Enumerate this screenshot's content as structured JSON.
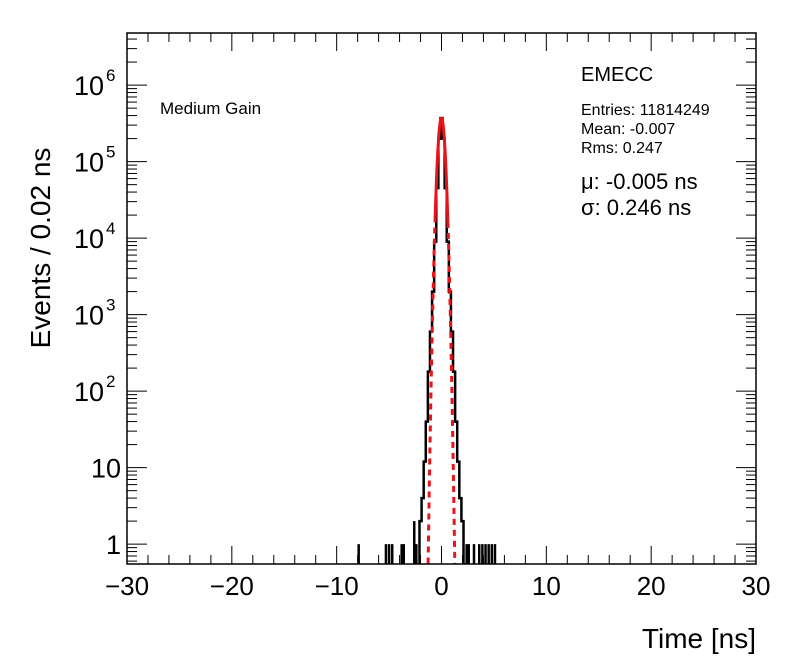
{
  "chart_data": {
    "type": "line",
    "log_y": true,
    "xlim": [
      -30,
      30
    ],
    "ylim": [
      0.55,
      4800000
    ],
    "xlabel": "Time [ns]",
    "ylabel": "Events / 0.02 ns",
    "x_ticks": [
      -30,
      -20,
      -10,
      0,
      10,
      20,
      30
    ],
    "x_tick_labels": [
      "−30",
      "−20",
      "−10",
      "0",
      "10",
      "20",
      "30"
    ],
    "y_ticks": [
      1,
      10,
      100,
      1000,
      10000,
      100000,
      1000000
    ],
    "y_tick_labels": [
      {
        "base": "1",
        "exp": ""
      },
      {
        "base": "10",
        "exp": ""
      },
      {
        "base": "10",
        "exp": "2"
      },
      {
        "base": "10",
        "exp": "3"
      },
      {
        "base": "10",
        "exp": "4"
      },
      {
        "base": "10",
        "exp": "5"
      },
      {
        "base": "10",
        "exp": "6"
      }
    ],
    "colors": {
      "histogram": "#000000",
      "fit": "#e8141b"
    },
    "series": [
      {
        "kind": "histogram",
        "x": [
          -2.0,
          -1.8,
          -1.6,
          -1.4,
          -1.2,
          -1.0,
          -0.8,
          -0.6,
          -0.4,
          -0.2,
          0.0,
          0.2,
          0.4,
          0.6,
          0.8,
          1.0,
          1.2,
          1.4,
          1.6,
          1.8,
          2.0
        ],
        "y": [
          2,
          4,
          12,
          40,
          180,
          600,
          2000,
          9000,
          45000,
          200000,
          370000,
          200000,
          45000,
          9000,
          2000,
          600,
          180,
          40,
          12,
          4,
          2
        ]
      },
      {
        "kind": "isolated_bins",
        "x": [
          -7.9,
          -5.3,
          -5.0,
          -4.7,
          -3.8,
          -3.6,
          -2.6,
          -2.4,
          2.4,
          2.6,
          3.1,
          3.6,
          3.9,
          4.2,
          4.5,
          4.8,
          5.1
        ],
        "y": [
          1,
          1,
          1,
          1,
          1,
          1,
          2,
          1,
          1,
          1,
          1,
          1,
          1,
          1,
          1,
          1,
          1
        ]
      },
      {
        "kind": "gaussian_fit",
        "amplitude": 370000,
        "mean": -0.005,
        "sigma": 0.246
      }
    ]
  },
  "annotations": {
    "gain": "Medium Gain",
    "detector": "EMECC",
    "entries": "Entries: 11814249",
    "mean": "Mean: -0.007",
    "rms": "Rms: 0.247",
    "mu": "μ: -0.005 ns",
    "sigma": "σ: 0.246 ns"
  }
}
